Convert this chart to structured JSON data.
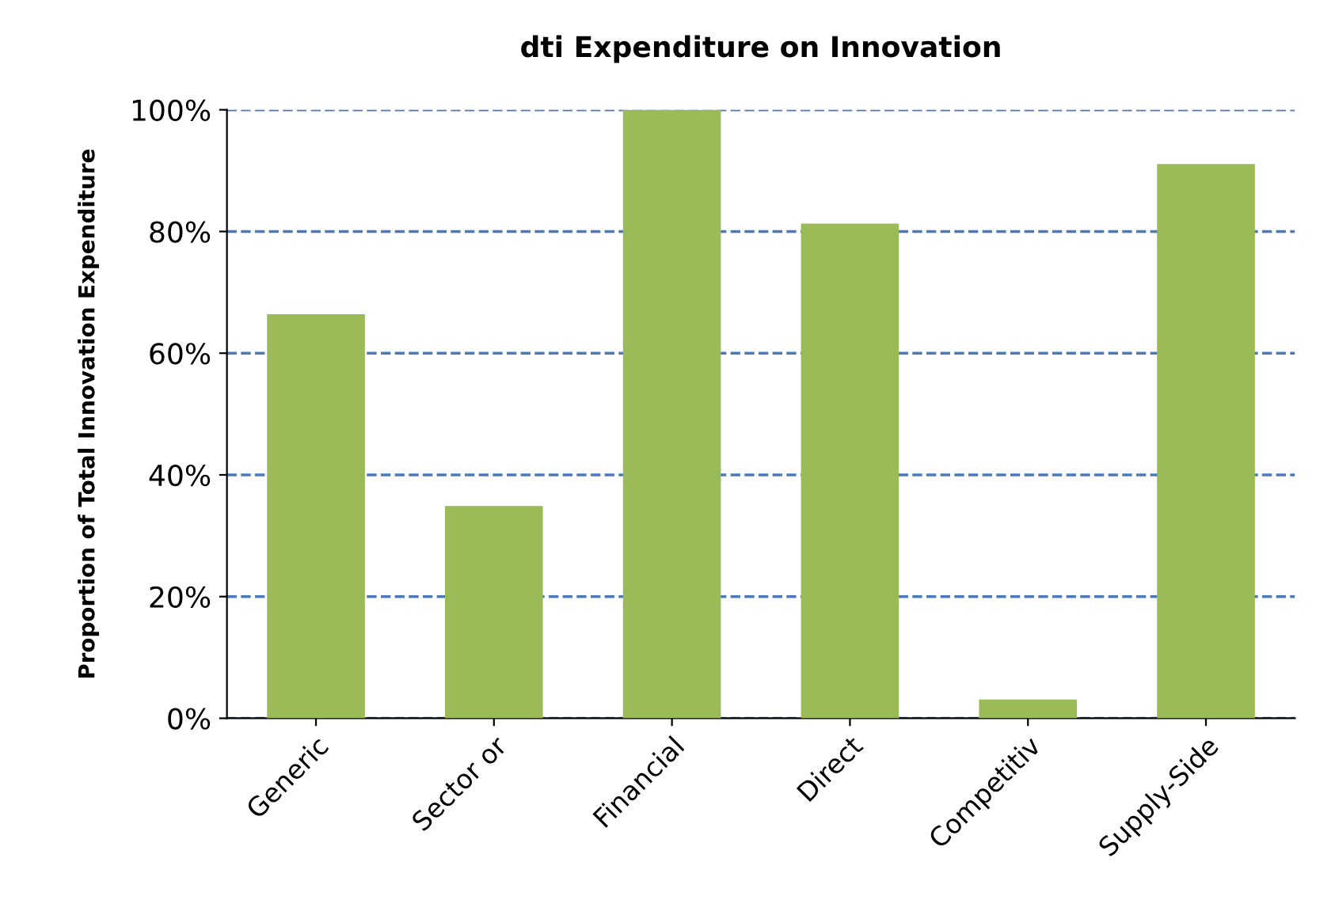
{
  "chart_data": {
    "type": "bar",
    "title": "dti Expenditure on Innovation",
    "ylabel": "Proportion of Total Innovation Expenditure",
    "categories": [
      "Generic",
      "Sector or",
      "Financial",
      "Direct",
      "Competitiv",
      "Supply-Side"
    ],
    "values": [
      0.664,
      0.349,
      1.0,
      0.813,
      0.031,
      0.911
    ],
    "color": "#9bbb59",
    "ylim": [
      0,
      1
    ],
    "yticks": [
      {
        "value": 0,
        "label": "0%"
      },
      {
        "value": 0.2,
        "label": "20%"
      },
      {
        "value": 0.4,
        "label": "40%"
      },
      {
        "value": 0.6,
        "label": "60%"
      },
      {
        "value": 0.8,
        "label": "80%"
      },
      {
        "value": 1.0,
        "label": "100%"
      }
    ],
    "grid": "y",
    "line_style": "dashed"
  }
}
